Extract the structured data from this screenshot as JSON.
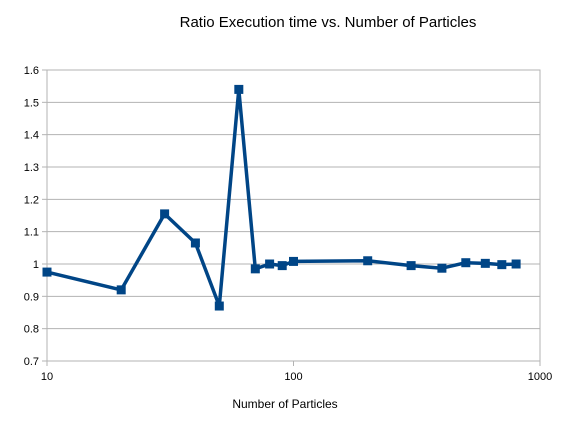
{
  "chart_data": {
    "type": "line",
    "title": "Ratio Execution time vs. Number of Particles",
    "xlabel": "Number of Particles",
    "ylabel": "",
    "xscale": "log",
    "xlim": [
      10,
      1000
    ],
    "ylim": [
      0.7,
      1.6
    ],
    "x_ticks": [
      10,
      100,
      1000
    ],
    "x_tick_labels": [
      "10",
      "100",
      "1000"
    ],
    "y_ticks": [
      0.7,
      0.8,
      0.9,
      1,
      1.1,
      1.2,
      1.3,
      1.4,
      1.5,
      1.6
    ],
    "y_tick_labels": [
      "0.7",
      "0.8",
      "0.9",
      "1",
      "1.1",
      "1.2",
      "1.3",
      "1.4",
      "1.5",
      "1.6"
    ],
    "grid": "horizontal",
    "legend": "none",
    "series": [
      {
        "color": "#004586",
        "marker": "square",
        "x": [
          10,
          20,
          30,
          40,
          50,
          60,
          70,
          80,
          90,
          100,
          200,
          300,
          400,
          500,
          600,
          700,
          800
        ],
        "y": [
          0.975,
          0.92,
          1.155,
          1.065,
          0.87,
          1.54,
          0.985,
          1.0,
          0.995,
          1.008,
          1.01,
          0.995,
          0.987,
          1.004,
          1.002,
          0.998,
          1.0
        ]
      }
    ]
  }
}
